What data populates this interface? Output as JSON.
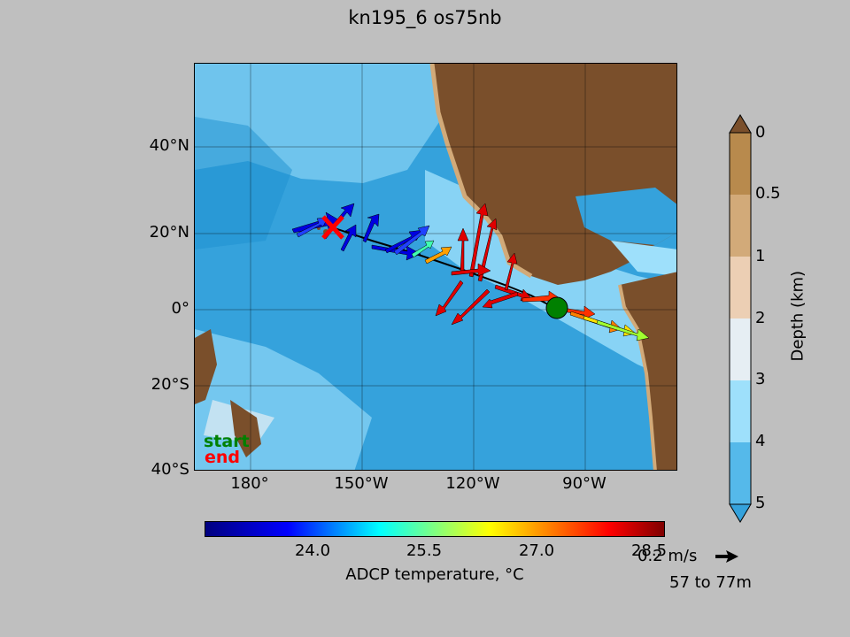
{
  "title": "kn195_6 os75nb",
  "map": {
    "lat_ticks": [
      "40°N",
      "20°N",
      "0°",
      "20°S",
      "40°S"
    ],
    "lon_ticks": [
      "180°",
      "150°W",
      "120°W",
      "90°W"
    ],
    "legend": {
      "start": "start",
      "end": "end"
    },
    "colors": {
      "land": "#7a4f2b",
      "deep_ocean": "#35a2dc",
      "mid_ocean": "#9ee0fb",
      "shelf": "#e6eef3",
      "start_marker": "#008000",
      "end_marker": "#ff0000"
    }
  },
  "temp_colorbar": {
    "ticks": [
      "24.0",
      "25.5",
      "27.0",
      "28.5"
    ],
    "label": "ADCP temperature, °C"
  },
  "depth_colorbar": {
    "ticks": [
      "0",
      "0.5",
      "1",
      "2",
      "3",
      "4",
      "5"
    ],
    "label": "Depth (km)",
    "colors": [
      "#b88a4d",
      "#d2aa79",
      "#eccfb4",
      "#e6eef3",
      "#9ee0fb",
      "#55b9ea"
    ]
  },
  "quiver_key": {
    "label": "0.2 m/s",
    "depth_range": "57 to 77m"
  }
}
